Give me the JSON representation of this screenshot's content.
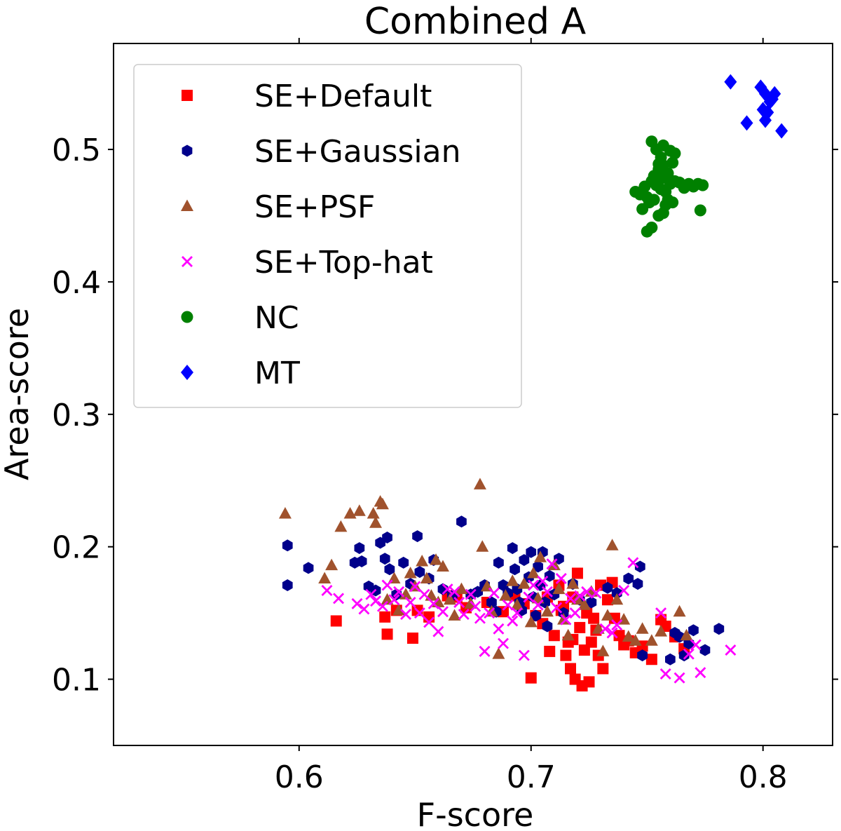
{
  "chart_data": {
    "type": "scatter",
    "title": "Combined A",
    "xlabel": "F-score",
    "ylabel": "Area-score",
    "xlim": [
      0.52,
      0.83
    ],
    "ylim": [
      0.05,
      0.58
    ],
    "x_ticks": [
      0.6,
      0.7,
      0.8
    ],
    "x_tick_labels": [
      "0.6",
      "0.7",
      "0.8"
    ],
    "y_ticks": [
      0.1,
      0.2,
      0.3,
      0.4,
      0.5
    ],
    "y_tick_labels": [
      "0.1",
      "0.2",
      "0.3",
      "0.4",
      "0.5"
    ],
    "grid": false,
    "legend_position": "top-left",
    "series": [
      {
        "name": "SE+Default",
        "marker": "square",
        "color": "#ff0000",
        "points": [
          [
            0.616,
            0.144
          ],
          [
            0.638,
            0.134
          ],
          [
            0.637,
            0.147
          ],
          [
            0.642,
            0.152
          ],
          [
            0.649,
            0.131
          ],
          [
            0.651,
            0.152
          ],
          [
            0.656,
            0.147
          ],
          [
            0.664,
            0.163
          ],
          [
            0.668,
            0.162
          ],
          [
            0.672,
            0.154
          ],
          [
            0.681,
            0.158
          ],
          [
            0.688,
            0.151
          ],
          [
            0.693,
            0.163
          ],
          [
            0.697,
            0.157
          ],
          [
            0.7,
            0.101
          ],
          [
            0.702,
            0.148
          ],
          [
            0.705,
            0.142
          ],
          [
            0.707,
            0.162
          ],
          [
            0.71,
            0.133
          ],
          [
            0.712,
            0.171
          ],
          [
            0.713,
            0.152
          ],
          [
            0.715,
            0.118
          ],
          [
            0.716,
            0.128
          ],
          [
            0.717,
            0.108
          ],
          [
            0.718,
            0.162
          ],
          [
            0.719,
            0.1
          ],
          [
            0.72,
            0.18
          ],
          [
            0.721,
            0.139
          ],
          [
            0.722,
            0.095
          ],
          [
            0.723,
            0.122
          ],
          [
            0.724,
            0.15
          ],
          [
            0.725,
            0.098
          ],
          [
            0.726,
            0.128
          ],
          [
            0.727,
            0.146
          ],
          [
            0.729,
            0.118
          ],
          [
            0.73,
            0.171
          ],
          [
            0.731,
            0.108
          ],
          [
            0.733,
            0.16
          ],
          [
            0.735,
            0.173
          ],
          [
            0.736,
            0.146
          ],
          [
            0.738,
            0.133
          ],
          [
            0.74,
            0.126
          ],
          [
            0.742,
            0.129
          ],
          [
            0.745,
            0.12
          ],
          [
            0.748,
            0.125
          ],
          [
            0.752,
            0.115
          ],
          [
            0.756,
            0.145
          ],
          [
            0.758,
            0.14
          ],
          [
            0.762,
            0.132
          ],
          [
            0.766,
            0.123
          ],
          [
            0.714,
            0.155
          ],
          [
            0.708,
            0.121
          ],
          [
            0.718,
            0.13
          ],
          [
            0.728,
            0.137
          ]
        ]
      },
      {
        "name": "SE+Gaussian",
        "marker": "hexagon",
        "color": "#00008b",
        "points": [
          [
            0.595,
            0.201
          ],
          [
            0.595,
            0.171
          ],
          [
            0.604,
            0.184
          ],
          [
            0.624,
            0.188
          ],
          [
            0.626,
            0.199
          ],
          [
            0.627,
            0.189
          ],
          [
            0.63,
            0.17
          ],
          [
            0.633,
            0.167
          ],
          [
            0.635,
            0.203
          ],
          [
            0.638,
            0.207
          ],
          [
            0.637,
            0.191
          ],
          [
            0.639,
            0.183
          ],
          [
            0.642,
            0.164
          ],
          [
            0.645,
            0.188
          ],
          [
            0.648,
            0.172
          ],
          [
            0.651,
            0.208
          ],
          [
            0.652,
            0.181
          ],
          [
            0.656,
            0.176
          ],
          [
            0.658,
            0.19
          ],
          [
            0.662,
            0.168
          ],
          [
            0.666,
            0.163
          ],
          [
            0.67,
            0.219
          ],
          [
            0.674,
            0.164
          ],
          [
            0.677,
            0.166
          ],
          [
            0.68,
            0.171
          ],
          [
            0.683,
            0.158
          ],
          [
            0.685,
            0.151
          ],
          [
            0.686,
            0.188
          ],
          [
            0.688,
            0.171
          ],
          [
            0.69,
            0.165
          ],
          [
            0.692,
            0.199
          ],
          [
            0.693,
            0.183
          ],
          [
            0.694,
            0.168
          ],
          [
            0.695,
            0.158
          ],
          [
            0.696,
            0.152
          ],
          [
            0.697,
            0.19
          ],
          [
            0.699,
            0.177
          ],
          [
            0.7,
            0.196
          ],
          [
            0.701,
            0.162
          ],
          [
            0.702,
            0.148
          ],
          [
            0.703,
            0.185
          ],
          [
            0.704,
            0.171
          ],
          [
            0.705,
            0.196
          ],
          [
            0.706,
            0.158
          ],
          [
            0.707,
            0.14
          ],
          [
            0.708,
            0.178
          ],
          [
            0.71,
            0.164
          ],
          [
            0.712,
            0.191
          ],
          [
            0.714,
            0.15
          ],
          [
            0.718,
            0.172
          ],
          [
            0.721,
            0.16
          ],
          [
            0.726,
            0.158
          ],
          [
            0.733,
            0.169
          ],
          [
            0.737,
            0.165
          ],
          [
            0.742,
            0.176
          ],
          [
            0.747,
            0.185
          ],
          [
            0.746,
            0.172
          ],
          [
            0.748,
            0.118
          ],
          [
            0.76,
            0.115
          ],
          [
            0.762,
            0.135
          ],
          [
            0.764,
            0.132
          ],
          [
            0.766,
            0.118
          ],
          [
            0.768,
            0.127
          ],
          [
            0.77,
            0.137
          ],
          [
            0.775,
            0.122
          ],
          [
            0.781,
            0.138
          ]
        ]
      },
      {
        "name": "SE+PSF",
        "marker": "triangle",
        "color": "#a0522d",
        "points": [
          [
            0.594,
            0.225
          ],
          [
            0.611,
            0.176
          ],
          [
            0.614,
            0.186
          ],
          [
            0.618,
            0.215
          ],
          [
            0.622,
            0.225
          ],
          [
            0.626,
            0.227
          ],
          [
            0.632,
            0.225
          ],
          [
            0.633,
            0.218
          ],
          [
            0.635,
            0.234
          ],
          [
            0.636,
            0.232
          ],
          [
            0.638,
            0.16
          ],
          [
            0.641,
            0.176
          ],
          [
            0.643,
            0.152
          ],
          [
            0.646,
            0.164
          ],
          [
            0.648,
            0.18
          ],
          [
            0.65,
            0.17
          ],
          [
            0.653,
            0.189
          ],
          [
            0.655,
            0.176
          ],
          [
            0.657,
            0.163
          ],
          [
            0.659,
            0.19
          ],
          [
            0.66,
            0.158
          ],
          [
            0.662,
            0.185
          ],
          [
            0.665,
            0.16
          ],
          [
            0.667,
            0.148
          ],
          [
            0.67,
            0.168
          ],
          [
            0.674,
            0.157
          ],
          [
            0.678,
            0.247
          ],
          [
            0.679,
            0.2
          ],
          [
            0.681,
            0.17
          ],
          [
            0.683,
            0.151
          ],
          [
            0.686,
            0.119
          ],
          [
            0.689,
            0.163
          ],
          [
            0.692,
            0.174
          ],
          [
            0.694,
            0.156
          ],
          [
            0.697,
            0.172
          ],
          [
            0.7,
            0.143
          ],
          [
            0.701,
            0.18
          ],
          [
            0.703,
            0.161
          ],
          [
            0.704,
            0.192
          ],
          [
            0.707,
            0.151
          ],
          [
            0.71,
            0.186
          ],
          [
            0.712,
            0.168
          ],
          [
            0.714,
            0.145
          ],
          [
            0.716,
            0.133
          ],
          [
            0.718,
            0.172
          ],
          [
            0.72,
            0.16
          ],
          [
            0.723,
            0.156
          ],
          [
            0.726,
            0.166
          ],
          [
            0.729,
            0.138
          ],
          [
            0.731,
            0.121
          ],
          [
            0.733,
            0.148
          ],
          [
            0.735,
            0.201
          ],
          [
            0.737,
            0.16
          ],
          [
            0.74,
            0.145
          ],
          [
            0.742,
            0.132
          ],
          [
            0.745,
            0.129
          ],
          [
            0.748,
            0.138
          ],
          [
            0.752,
            0.129
          ],
          [
            0.756,
            0.136
          ],
          [
            0.764,
            0.151
          ],
          [
            0.767,
            0.133
          ]
        ]
      },
      {
        "name": "SE+Top-hat",
        "marker": "x",
        "color": "#ff00ff",
        "points": [
          [
            0.612,
            0.167
          ],
          [
            0.617,
            0.161
          ],
          [
            0.625,
            0.157
          ],
          [
            0.628,
            0.153
          ],
          [
            0.631,
            0.164
          ],
          [
            0.633,
            0.159
          ],
          [
            0.636,
            0.155
          ],
          [
            0.638,
            0.171
          ],
          [
            0.641,
            0.16
          ],
          [
            0.643,
            0.166
          ],
          [
            0.646,
            0.149
          ],
          [
            0.648,
            0.158
          ],
          [
            0.65,
            0.17
          ],
          [
            0.652,
            0.15
          ],
          [
            0.654,
            0.164
          ],
          [
            0.656,
            0.143
          ],
          [
            0.658,
            0.157
          ],
          [
            0.66,
            0.136
          ],
          [
            0.662,
            0.151
          ],
          [
            0.664,
            0.168
          ],
          [
            0.667,
            0.166
          ],
          [
            0.669,
            0.158
          ],
          [
            0.671,
            0.149
          ],
          [
            0.674,
            0.164
          ],
          [
            0.676,
            0.155
          ],
          [
            0.678,
            0.146
          ],
          [
            0.68,
            0.121
          ],
          [
            0.682,
            0.15
          ],
          [
            0.684,
            0.165
          ],
          [
            0.686,
            0.138
          ],
          [
            0.688,
            0.127
          ],
          [
            0.69,
            0.156
          ],
          [
            0.692,
            0.144
          ],
          [
            0.694,
            0.15
          ],
          [
            0.697,
            0.118
          ],
          [
            0.699,
            0.162
          ],
          [
            0.701,
            0.171
          ],
          [
            0.703,
            0.156
          ],
          [
            0.705,
            0.174
          ],
          [
            0.707,
            0.166
          ],
          [
            0.709,
            0.187
          ],
          [
            0.711,
            0.154
          ],
          [
            0.713,
            0.176
          ],
          [
            0.715,
            0.145
          ],
          [
            0.717,
            0.161
          ],
          [
            0.719,
            0.15
          ],
          [
            0.721,
            0.163
          ],
          [
            0.724,
            0.166
          ],
          [
            0.728,
            0.165
          ],
          [
            0.732,
            0.138
          ],
          [
            0.735,
            0.135
          ],
          [
            0.737,
            0.141
          ],
          [
            0.74,
            0.167
          ],
          [
            0.744,
            0.188
          ],
          [
            0.756,
            0.15
          ],
          [
            0.758,
            0.104
          ],
          [
            0.764,
            0.101
          ],
          [
            0.768,
            0.119
          ],
          [
            0.771,
            0.126
          ],
          [
            0.773,
            0.105
          ],
          [
            0.786,
            0.122
          ]
        ]
      },
      {
        "name": "NC",
        "marker": "circle",
        "color": "#008000",
        "points": [
          [
            0.75,
            0.438
          ],
          [
            0.752,
            0.441
          ],
          [
            0.748,
            0.455
          ],
          [
            0.751,
            0.46
          ],
          [
            0.745,
            0.468
          ],
          [
            0.747,
            0.466
          ],
          [
            0.749,
            0.472
          ],
          [
            0.752,
            0.476
          ],
          [
            0.754,
            0.473
          ],
          [
            0.756,
            0.47
          ],
          [
            0.758,
            0.468
          ],
          [
            0.76,
            0.474
          ],
          [
            0.762,
            0.476
          ],
          [
            0.764,
            0.475
          ],
          [
            0.766,
            0.471
          ],
          [
            0.768,
            0.474
          ],
          [
            0.77,
            0.472
          ],
          [
            0.772,
            0.474
          ],
          [
            0.774,
            0.473
          ],
          [
            0.773,
            0.454
          ],
          [
            0.755,
            0.45
          ],
          [
            0.757,
            0.452
          ],
          [
            0.759,
            0.462
          ],
          [
            0.753,
            0.48
          ],
          [
            0.755,
            0.485
          ],
          [
            0.757,
            0.488
          ],
          [
            0.759,
            0.482
          ],
          [
            0.761,
            0.49
          ],
          [
            0.756,
            0.494
          ],
          [
            0.754,
            0.5
          ],
          [
            0.752,
            0.506
          ],
          [
            0.757,
            0.503
          ],
          [
            0.76,
            0.499
          ],
          [
            0.762,
            0.497
          ],
          [
            0.755,
            0.489
          ],
          [
            0.753,
            0.462
          ],
          [
            0.75,
            0.464
          ],
          [
            0.758,
            0.458
          ],
          [
            0.761,
            0.46
          ],
          [
            0.756,
            0.478
          ]
        ]
      },
      {
        "name": "MT",
        "marker": "diamond",
        "color": "#0000ff",
        "points": [
          [
            0.786,
            0.551
          ],
          [
            0.793,
            0.52
          ],
          [
            0.799,
            0.547
          ],
          [
            0.8,
            0.53
          ],
          [
            0.801,
            0.542
          ],
          [
            0.802,
            0.528
          ],
          [
            0.803,
            0.536
          ],
          [
            0.804,
            0.538
          ],
          [
            0.805,
            0.542
          ],
          [
            0.808,
            0.514
          ],
          [
            0.801,
            0.522
          ]
        ]
      }
    ]
  }
}
